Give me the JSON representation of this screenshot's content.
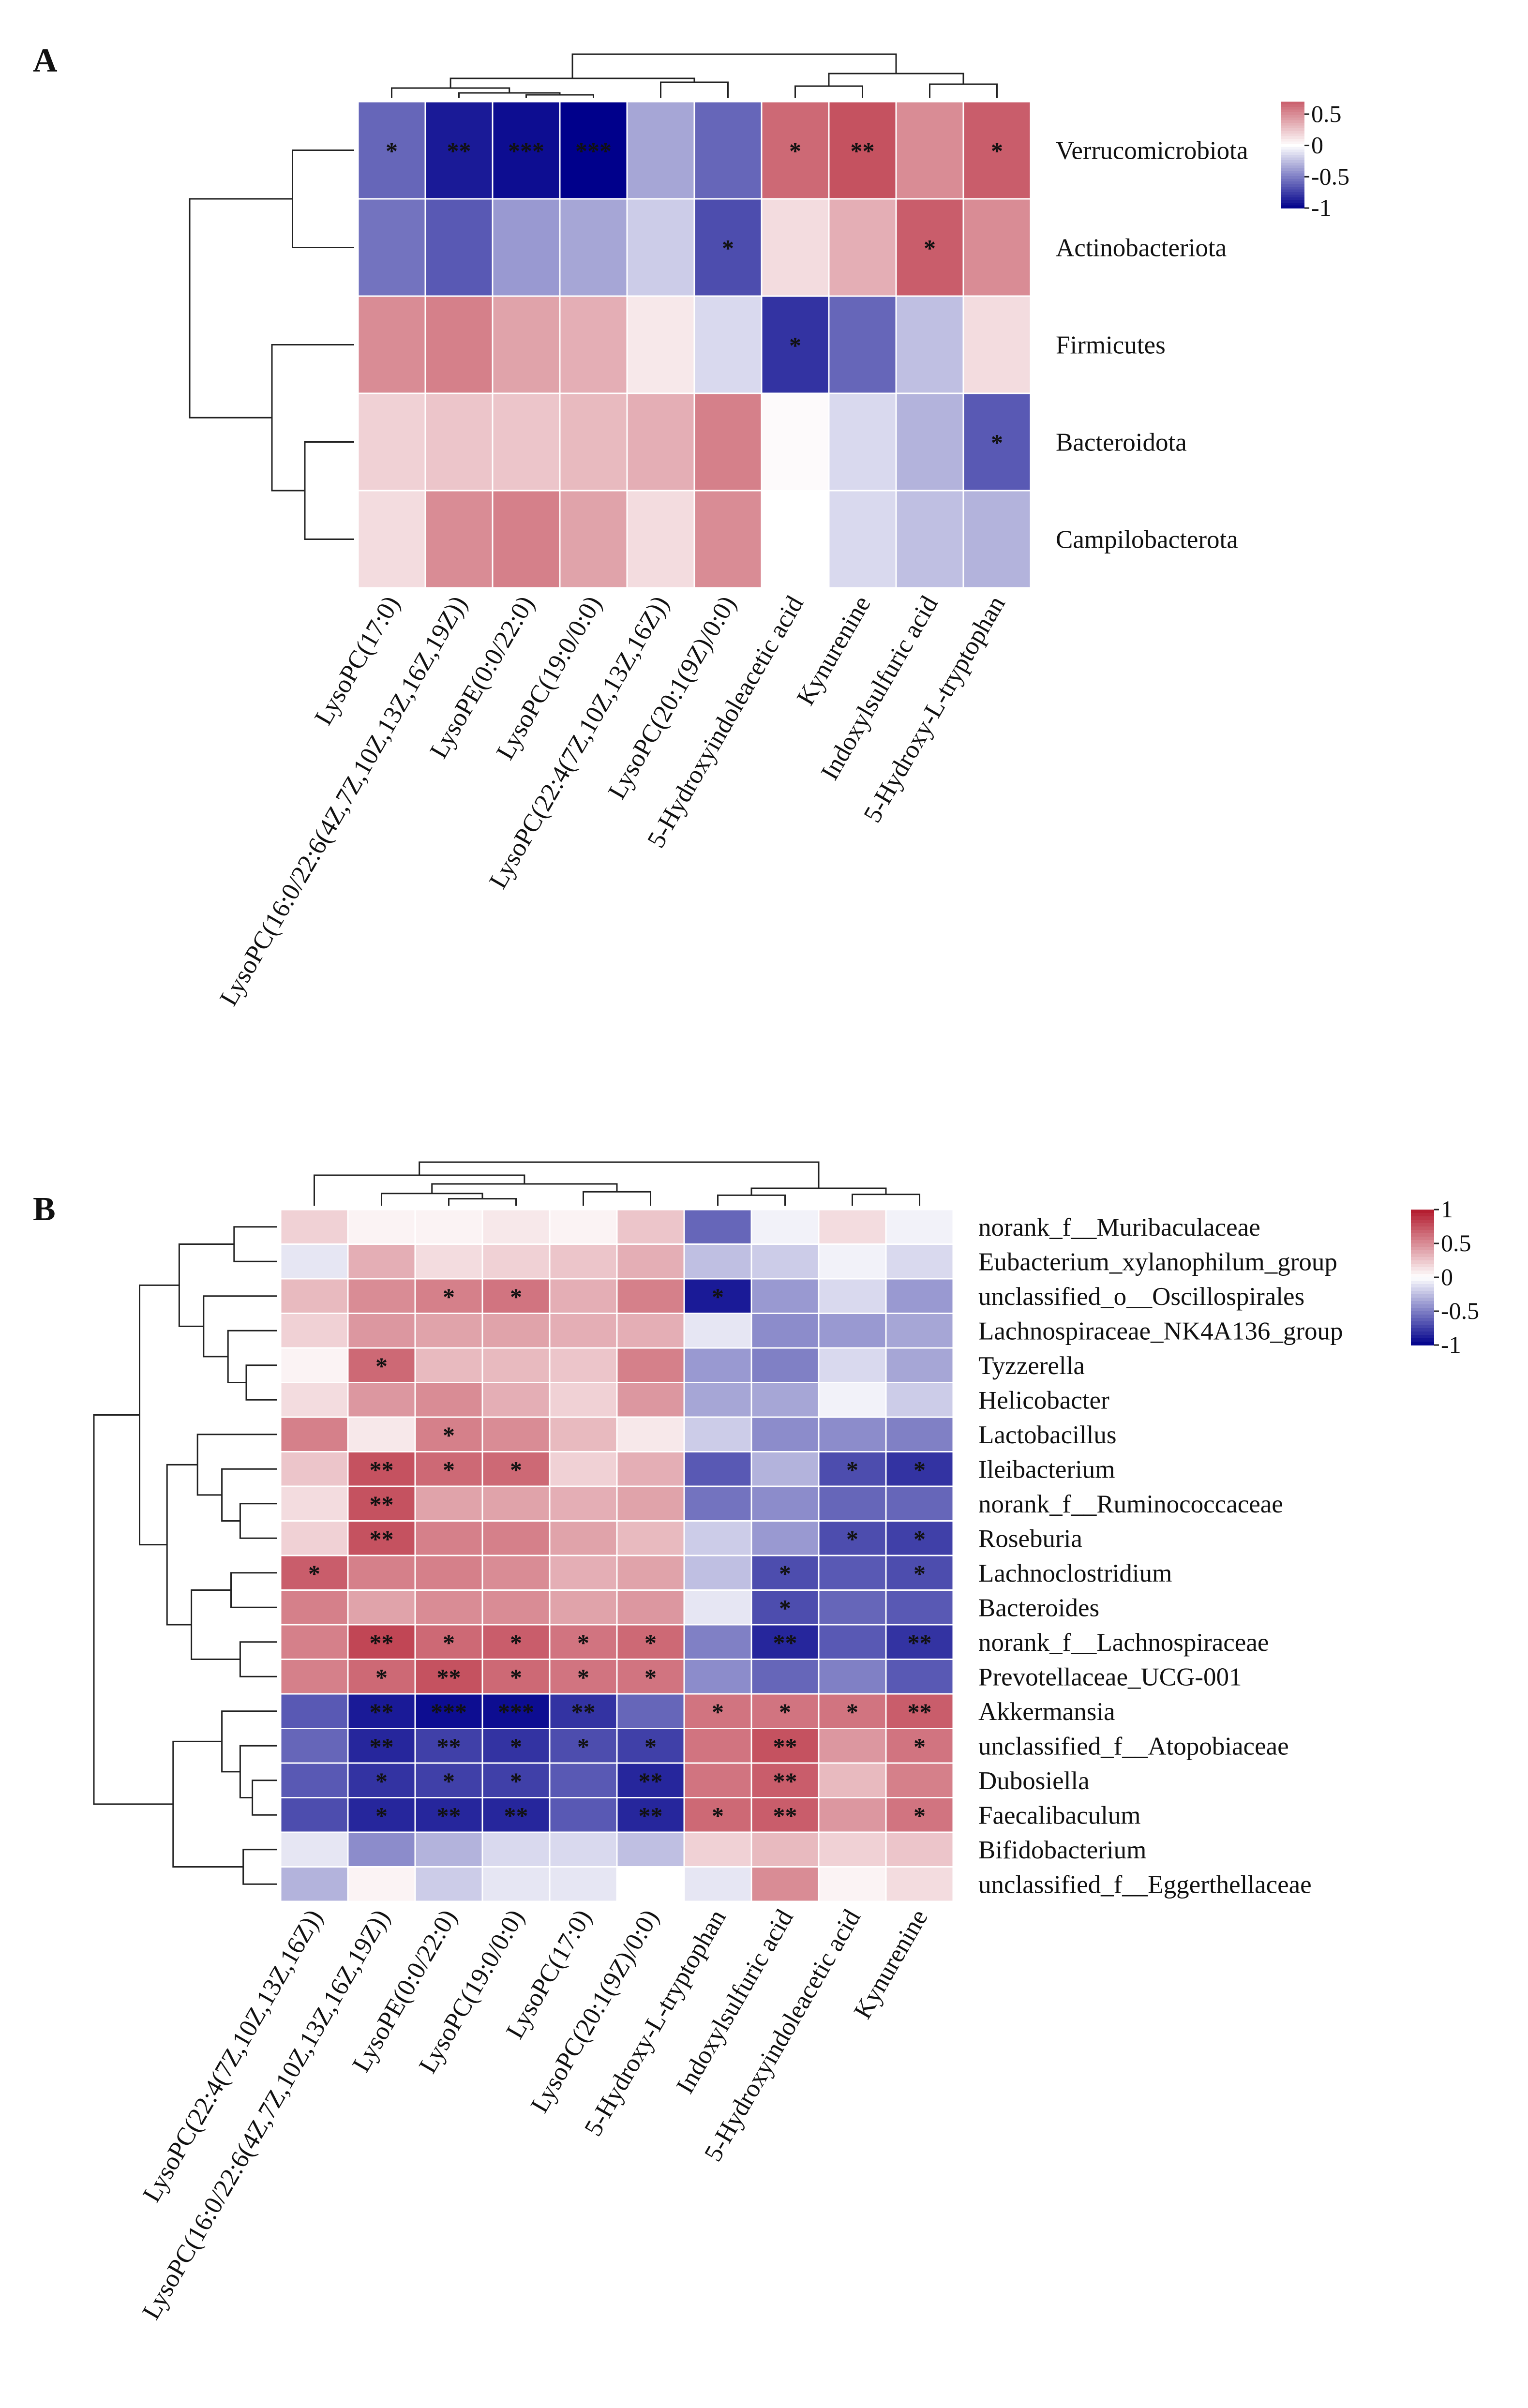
{
  "figure": {
    "colors": {
      "negative": "#00008b",
      "zero": "#ffffff",
      "positive": "#b2182b",
      "tree": "#222222",
      "grid": "#ffffff"
    }
  },
  "chart_data": [
    {
      "type": "heatmap",
      "panel": "A",
      "title": "",
      "legend": {
        "ticks": [
          "0.5",
          "0",
          "-0.5",
          "-1"
        ],
        "tick_values": [
          0.5,
          0,
          -0.5,
          -1
        ],
        "range": [
          -1,
          0.7
        ]
      },
      "rows": [
        "Verrucomicrobiota",
        "Actinobacteriota",
        "Firmicutes",
        "Bacteroidota",
        "Campilobacterota"
      ],
      "columns": [
        "LysoPC(17:0)",
        "LysoPC(16:0/22:6(4Z,7Z,10Z,13Z,16Z,19Z))",
        "LysoPE(0:0/22:0)",
        "LysoPC(19:0/0:0)",
        "LysoPC(22:4(7Z,10Z,13Z,16Z))",
        "LysoPC(20:1(9Z)/0:0)",
        "5-Hydroxyindoleacetic acid",
        "Kynurenine",
        "Indoxylsulfuric acid",
        "5-Hydroxy-L-tryptophan"
      ],
      "values": [
        [
          -0.6,
          -0.9,
          -0.95,
          -1.0,
          -0.35,
          -0.6,
          0.65,
          0.75,
          0.5,
          0.7
        ],
        [
          -0.55,
          -0.65,
          -0.4,
          -0.35,
          -0.2,
          -0.7,
          0.15,
          0.35,
          0.7,
          0.5
        ],
        [
          0.5,
          0.55,
          0.4,
          0.35,
          0.1,
          -0.15,
          -0.8,
          -0.6,
          -0.25,
          0.15
        ],
        [
          0.2,
          0.25,
          0.25,
          0.3,
          0.35,
          0.55,
          0.02,
          -0.15,
          -0.3,
          -0.65
        ],
        [
          0.15,
          0.5,
          0.55,
          0.4,
          0.15,
          0.5,
          0.0,
          -0.15,
          -0.25,
          -0.3
        ]
      ],
      "significance": [
        [
          "*",
          "**",
          "***",
          "***",
          "",
          "",
          "*",
          "**",
          "",
          "*"
        ],
        [
          "",
          "",
          "",
          "",
          "",
          "*",
          "",
          "",
          "*",
          ""
        ],
        [
          "",
          "",
          "",
          "",
          "",
          "",
          "*",
          "",
          "",
          ""
        ],
        [
          "",
          "",
          "",
          "",
          "",
          "",
          "",
          "",
          "",
          "*"
        ],
        [
          "",
          "",
          "",
          "",
          "",
          "",
          "",
          "",
          "",
          ""
        ]
      ]
    },
    {
      "type": "heatmap",
      "panel": "B",
      "title": "",
      "legend": {
        "ticks": [
          "1",
          "0.5",
          "0",
          "-0.5",
          "-1"
        ],
        "tick_values": [
          1,
          0.5,
          0,
          -0.5,
          -1
        ],
        "range": [
          -1,
          1
        ]
      },
      "rows": [
        "norank_f__Muribaculaceae",
        "Eubacterium_xylanophilum_group",
        "unclassified_o__Oscillospirales",
        "Lachnospiraceae_NK4A136_group",
        "Tyzzerella",
        "Helicobacter",
        "Lactobacillus",
        "Ileibacterium",
        "norank_f__Ruminococcaceae",
        "Roseburia",
        "Lachnoclostridium",
        "Bacteroides",
        "norank_f__Lachnospiraceae",
        "Prevotellaceae_UCG-001",
        "Akkermansia",
        "unclassified_f__Atopobiaceae",
        "Dubosiella",
        "Faecalibaculum",
        "Bifidobacterium",
        "unclassified_f__Eggerthellaceae"
      ],
      "columns": [
        "LysoPC(22:4(7Z,10Z,13Z,16Z))",
        "LysoPC(16:0/22:6(4Z,7Z,10Z,13Z,16Z,19Z))",
        "LysoPE(0:0/22:0)",
        "LysoPC(19:0/0:0)",
        "LysoPC(17:0)",
        "LysoPC(20:1(9Z)/0:0)",
        "5-Hydroxy-L-tryptophan",
        "Indoxylsulfuric acid",
        "5-Hydroxyindoleacetic acid",
        "Kynurenine"
      ],
      "values": [
        [
          0.2,
          0.05,
          0.05,
          0.1,
          0.05,
          0.25,
          -0.6,
          -0.05,
          0.15,
          -0.05
        ],
        [
          -0.1,
          0.35,
          0.15,
          0.2,
          0.25,
          0.35,
          -0.25,
          -0.2,
          -0.05,
          -0.15
        ],
        [
          0.3,
          0.5,
          0.55,
          0.6,
          0.35,
          0.55,
          -0.9,
          -0.4,
          -0.15,
          -0.4
        ],
        [
          0.2,
          0.45,
          0.4,
          0.4,
          0.35,
          0.35,
          -0.1,
          -0.45,
          -0.4,
          -0.35
        ],
        [
          0.05,
          0.65,
          0.3,
          0.3,
          0.25,
          0.55,
          -0.4,
          -0.5,
          -0.15,
          -0.35
        ],
        [
          0.15,
          0.45,
          0.5,
          0.35,
          0.2,
          0.45,
          -0.35,
          -0.35,
          -0.05,
          -0.2
        ],
        [
          0.55,
          0.1,
          0.55,
          0.5,
          0.3,
          0.1,
          -0.2,
          -0.45,
          -0.45,
          -0.5
        ],
        [
          0.25,
          0.75,
          0.65,
          0.65,
          0.2,
          0.35,
          -0.65,
          -0.3,
          -0.7,
          -0.8
        ],
        [
          0.15,
          0.75,
          0.4,
          0.4,
          0.35,
          0.4,
          -0.55,
          -0.45,
          -0.6,
          -0.6
        ],
        [
          0.2,
          0.75,
          0.55,
          0.55,
          0.4,
          0.3,
          -0.2,
          -0.4,
          -0.7,
          -0.75
        ],
        [
          0.7,
          0.55,
          0.55,
          0.5,
          0.35,
          0.4,
          -0.25,
          -0.7,
          -0.65,
          -0.7
        ],
        [
          0.55,
          0.4,
          0.5,
          0.5,
          0.4,
          0.45,
          -0.1,
          -0.7,
          -0.6,
          -0.65
        ],
        [
          0.55,
          0.8,
          0.65,
          0.7,
          0.6,
          0.65,
          -0.5,
          -0.85,
          -0.65,
          -0.8
        ],
        [
          0.55,
          0.65,
          0.75,
          0.65,
          0.6,
          0.6,
          -0.45,
          -0.6,
          -0.5,
          -0.65
        ],
        [
          -0.65,
          -0.9,
          -0.95,
          -0.95,
          -0.8,
          -0.6,
          0.6,
          0.6,
          0.6,
          0.7
        ],
        [
          -0.6,
          -0.85,
          -0.75,
          -0.8,
          -0.7,
          -0.75,
          0.6,
          0.75,
          0.45,
          0.6
        ],
        [
          -0.65,
          -0.8,
          -0.75,
          -0.75,
          -0.65,
          -0.85,
          0.6,
          0.7,
          0.3,
          0.55
        ],
        [
          -0.7,
          -0.85,
          -0.85,
          -0.85,
          -0.65,
          -0.85,
          0.65,
          0.7,
          0.45,
          0.6
        ],
        [
          -0.1,
          -0.45,
          -0.3,
          -0.15,
          -0.15,
          -0.25,
          0.2,
          0.3,
          0.2,
          0.25
        ],
        [
          -0.3,
          0.05,
          -0.2,
          -0.1,
          -0.1,
          0.0,
          -0.1,
          0.5,
          0.05,
          0.15
        ]
      ],
      "significance": [
        [
          "",
          "",
          "",
          "",
          "",
          "",
          "",
          "",
          "",
          ""
        ],
        [
          "",
          "",
          "",
          "",
          "",
          "",
          "",
          "",
          "",
          ""
        ],
        [
          "",
          "",
          "*",
          "*",
          "",
          "",
          "*",
          "",
          "",
          ""
        ],
        [
          "",
          "",
          "",
          "",
          "",
          "",
          "",
          "",
          "",
          ""
        ],
        [
          "",
          "*",
          "",
          "",
          "",
          "",
          "",
          "",
          "",
          ""
        ],
        [
          "",
          "",
          "",
          "",
          "",
          "",
          "",
          "",
          "",
          ""
        ],
        [
          "",
          "",
          "*",
          "",
          "",
          "",
          "",
          "",
          "",
          ""
        ],
        [
          "",
          "**",
          "*",
          "*",
          "",
          "",
          "",
          "",
          "*",
          "*"
        ],
        [
          "",
          "**",
          "",
          "",
          "",
          "",
          "",
          "",
          "",
          ""
        ],
        [
          "",
          "**",
          "",
          "",
          "",
          "",
          "",
          "",
          "*",
          "*"
        ],
        [
          "*",
          "",
          "",
          "",
          "",
          "",
          "",
          "*",
          "",
          "*"
        ],
        [
          "",
          "",
          "",
          "",
          "",
          "",
          "",
          "*",
          "",
          ""
        ],
        [
          "",
          "**",
          "*",
          "*",
          "*",
          "*",
          "",
          "**",
          "",
          "**"
        ],
        [
          "",
          "*",
          "**",
          "*",
          "*",
          "*",
          "",
          "",
          "",
          ""
        ],
        [
          "",
          "**",
          "***",
          "***",
          "**",
          "",
          "*",
          "*",
          "*",
          "**"
        ],
        [
          "",
          "**",
          "**",
          "*",
          "*",
          "*",
          "",
          "**",
          "",
          "*"
        ],
        [
          "",
          "*",
          "*",
          "*",
          "",
          "**",
          "",
          "**",
          "",
          ""
        ],
        [
          "",
          "*",
          "**",
          "**",
          "",
          "**",
          "*",
          "**",
          "",
          "*"
        ],
        [
          "",
          "",
          "",
          "",
          "",
          "",
          "",
          "",
          "",
          ""
        ],
        [
          "",
          "",
          "",
          "",
          "",
          "",
          "",
          "",
          "",
          ""
        ]
      ]
    }
  ]
}
